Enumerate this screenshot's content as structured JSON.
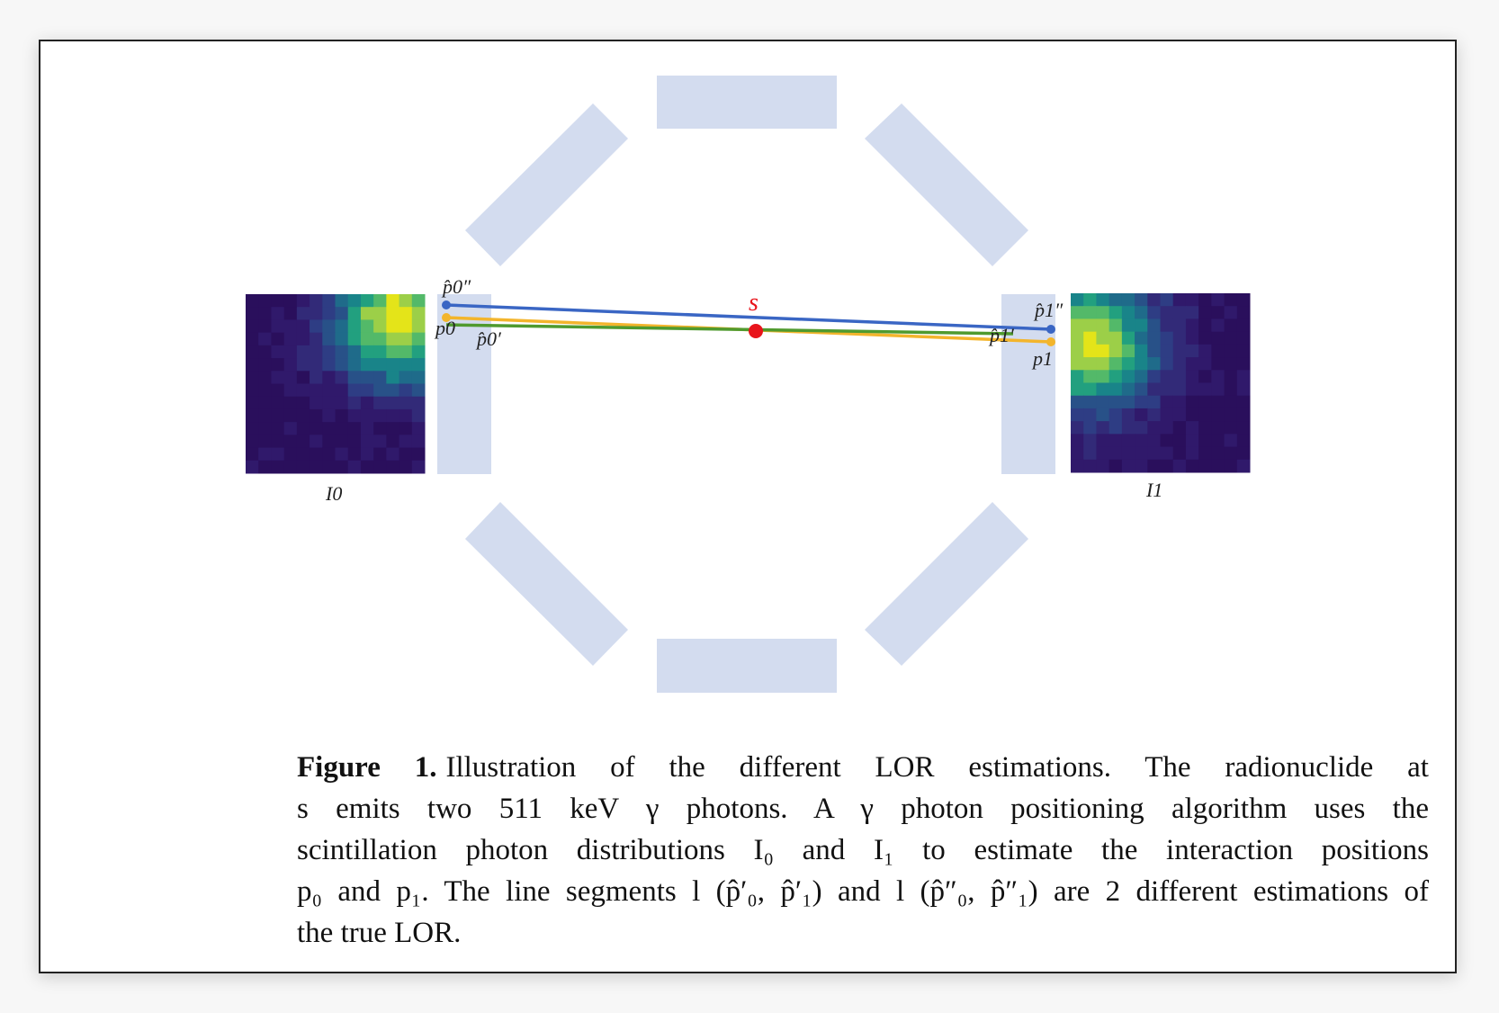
{
  "figure": {
    "label_s": "s",
    "label_I0": "I0",
    "label_I1": "I1",
    "label_p0": "p0",
    "label_p1": "p1",
    "label_p0_prime": "p̂0′",
    "label_p1_prime": "p̂1′",
    "label_p0_dprime": "p̂0″",
    "label_p1_dprime": "p̂1″",
    "colors": {
      "detector": "#d3dcef",
      "blue_line": "#3a66c4",
      "yellow_line": "#f3b52c",
      "green_line": "#4f9a2e",
      "source": "#e8141b"
    }
  },
  "caption": {
    "figure_label": "Figure 1.",
    "line1": "Illustration of the different LOR estimations.  The radionuclide at",
    "line2": "s emits two 511 keV γ photons.  A γ photon positioning algorithm uses the",
    "line3": "scintillation photon distributions I₀ and I₁ to estimate the interaction positions",
    "line4": "p₀ and p₁. The line segments l (p̂′₀, p̂′₁) and l (p̂″₀, p̂″₁) are 2 different estimations of",
    "line5": "the true LOR."
  }
}
